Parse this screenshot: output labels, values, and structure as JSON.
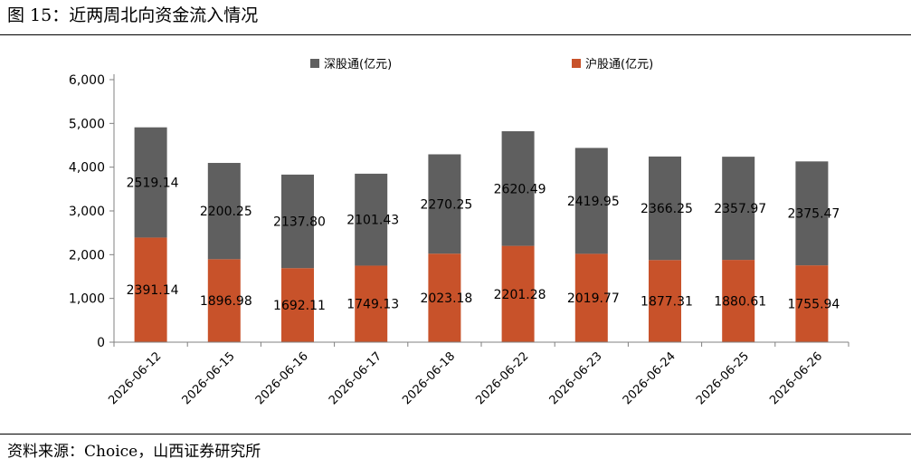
{
  "figure": {
    "title": "图 15：近两周北向资金流入情况",
    "source": "资料来源：Choice，山西证券研究所"
  },
  "colors": {
    "shenzhen": "#5f5f5f",
    "shanghai": "#c8522a",
    "axis": "#808080",
    "text": "#000000"
  },
  "chart_data": {
    "type": "bar",
    "stacked": true,
    "title": "",
    "xlabel": "",
    "ylabel": "",
    "ylim": [
      0,
      6000
    ],
    "yticks": [
      "0",
      "1,000",
      "2,000",
      "3,000",
      "4,000",
      "5,000",
      "6,000"
    ],
    "grid": false,
    "legend_position": "top",
    "categories": [
      "2026-06-12",
      "2026-06-15",
      "2026-06-16",
      "2026-06-17",
      "2026-06-18",
      "2026-06-22",
      "2026-06-23",
      "2026-06-24",
      "2026-06-25",
      "2026-06-26"
    ],
    "series": [
      {
        "name": "沪股通(亿元)",
        "color": "#c8522a",
        "values": [
          2391.14,
          1896.98,
          1692.11,
          1749.13,
          2023.18,
          2201.28,
          2019.77,
          1877.31,
          1880.61,
          1755.94
        ],
        "labels": [
          "2391.14",
          "1896.98",
          "1692.11",
          "1749.13",
          "2023.18",
          "2201.28",
          "2019.77",
          "1877.31",
          "1880.61",
          "1755.94"
        ]
      },
      {
        "name": "深股通(亿元)",
        "color": "#5f5f5f",
        "values": [
          2519.14,
          2200.25,
          2137.8,
          2101.43,
          2270.25,
          2620.49,
          2419.95,
          2366.25,
          2357.97,
          2375.47
        ],
        "labels": [
          "2519.14",
          "2200.25",
          "2137.80",
          "2101.43",
          "2270.25",
          "2620.49",
          "2419.95",
          "2366.25",
          "2357.97",
          "2375.47"
        ]
      }
    ],
    "legend_order": [
      1,
      0
    ]
  }
}
